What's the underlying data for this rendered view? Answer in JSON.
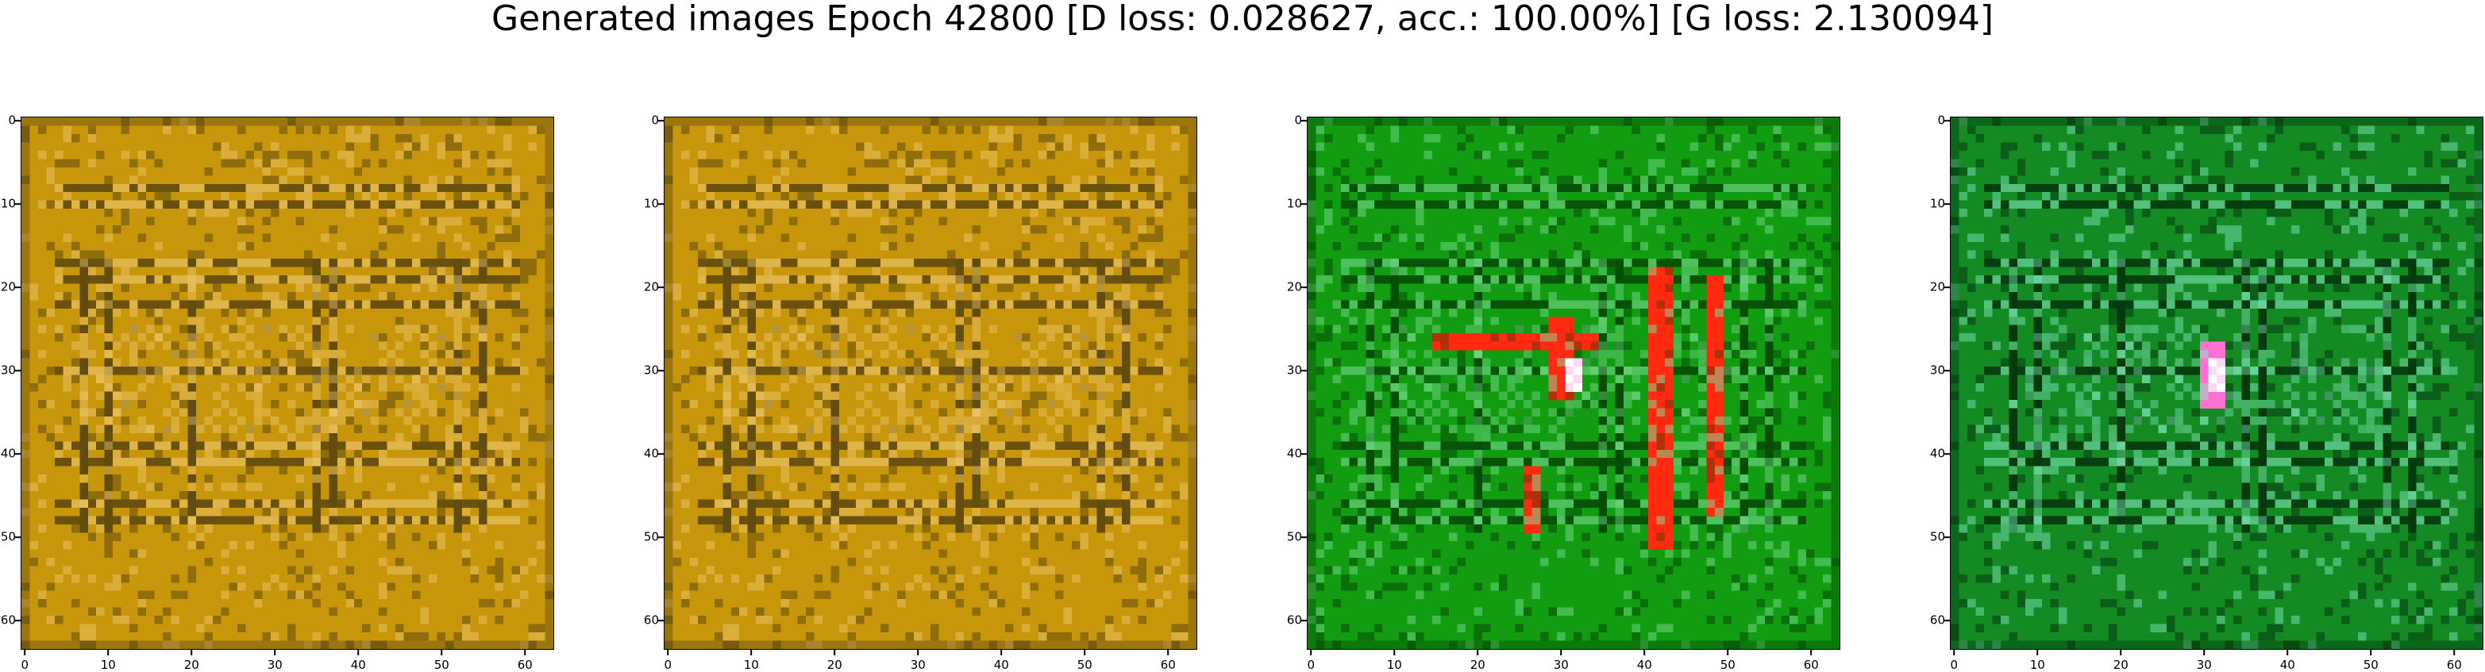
{
  "figure": {
    "title": "Generated images Epoch 42800 [D loss: 0.028627, acc.: 100.00%] [G loss: 2.130094]"
  },
  "axes_ticks": {
    "x": [
      "0",
      "10",
      "20",
      "30",
      "40",
      "50",
      "60"
    ],
    "y": [
      "0",
      "10",
      "20",
      "30",
      "40",
      "50",
      "60"
    ]
  },
  "panels": [
    {
      "name": "generated-image-1",
      "palette": "ochre",
      "base": "#c8960a",
      "dark": "#4a3a10",
      "light": "#f2cc7a",
      "accent": "#f0b0a0",
      "has_figure": false
    },
    {
      "name": "generated-image-2",
      "palette": "ochre",
      "base": "#c8960a",
      "dark": "#4a3a10",
      "light": "#f2cc7a",
      "accent": "#f0b0a0",
      "has_figure": false
    },
    {
      "name": "generated-image-3",
      "palette": "green",
      "base": "#129c12",
      "dark": "#033a03",
      "light": "#7fe09a",
      "accent": "#ff2a10",
      "has_figure": true
    },
    {
      "name": "generated-image-4",
      "palette": "green",
      "base": "#138a22",
      "dark": "#02260a",
      "light": "#88ecc8",
      "accent": "#ff70d0",
      "has_figure": true
    }
  ]
}
